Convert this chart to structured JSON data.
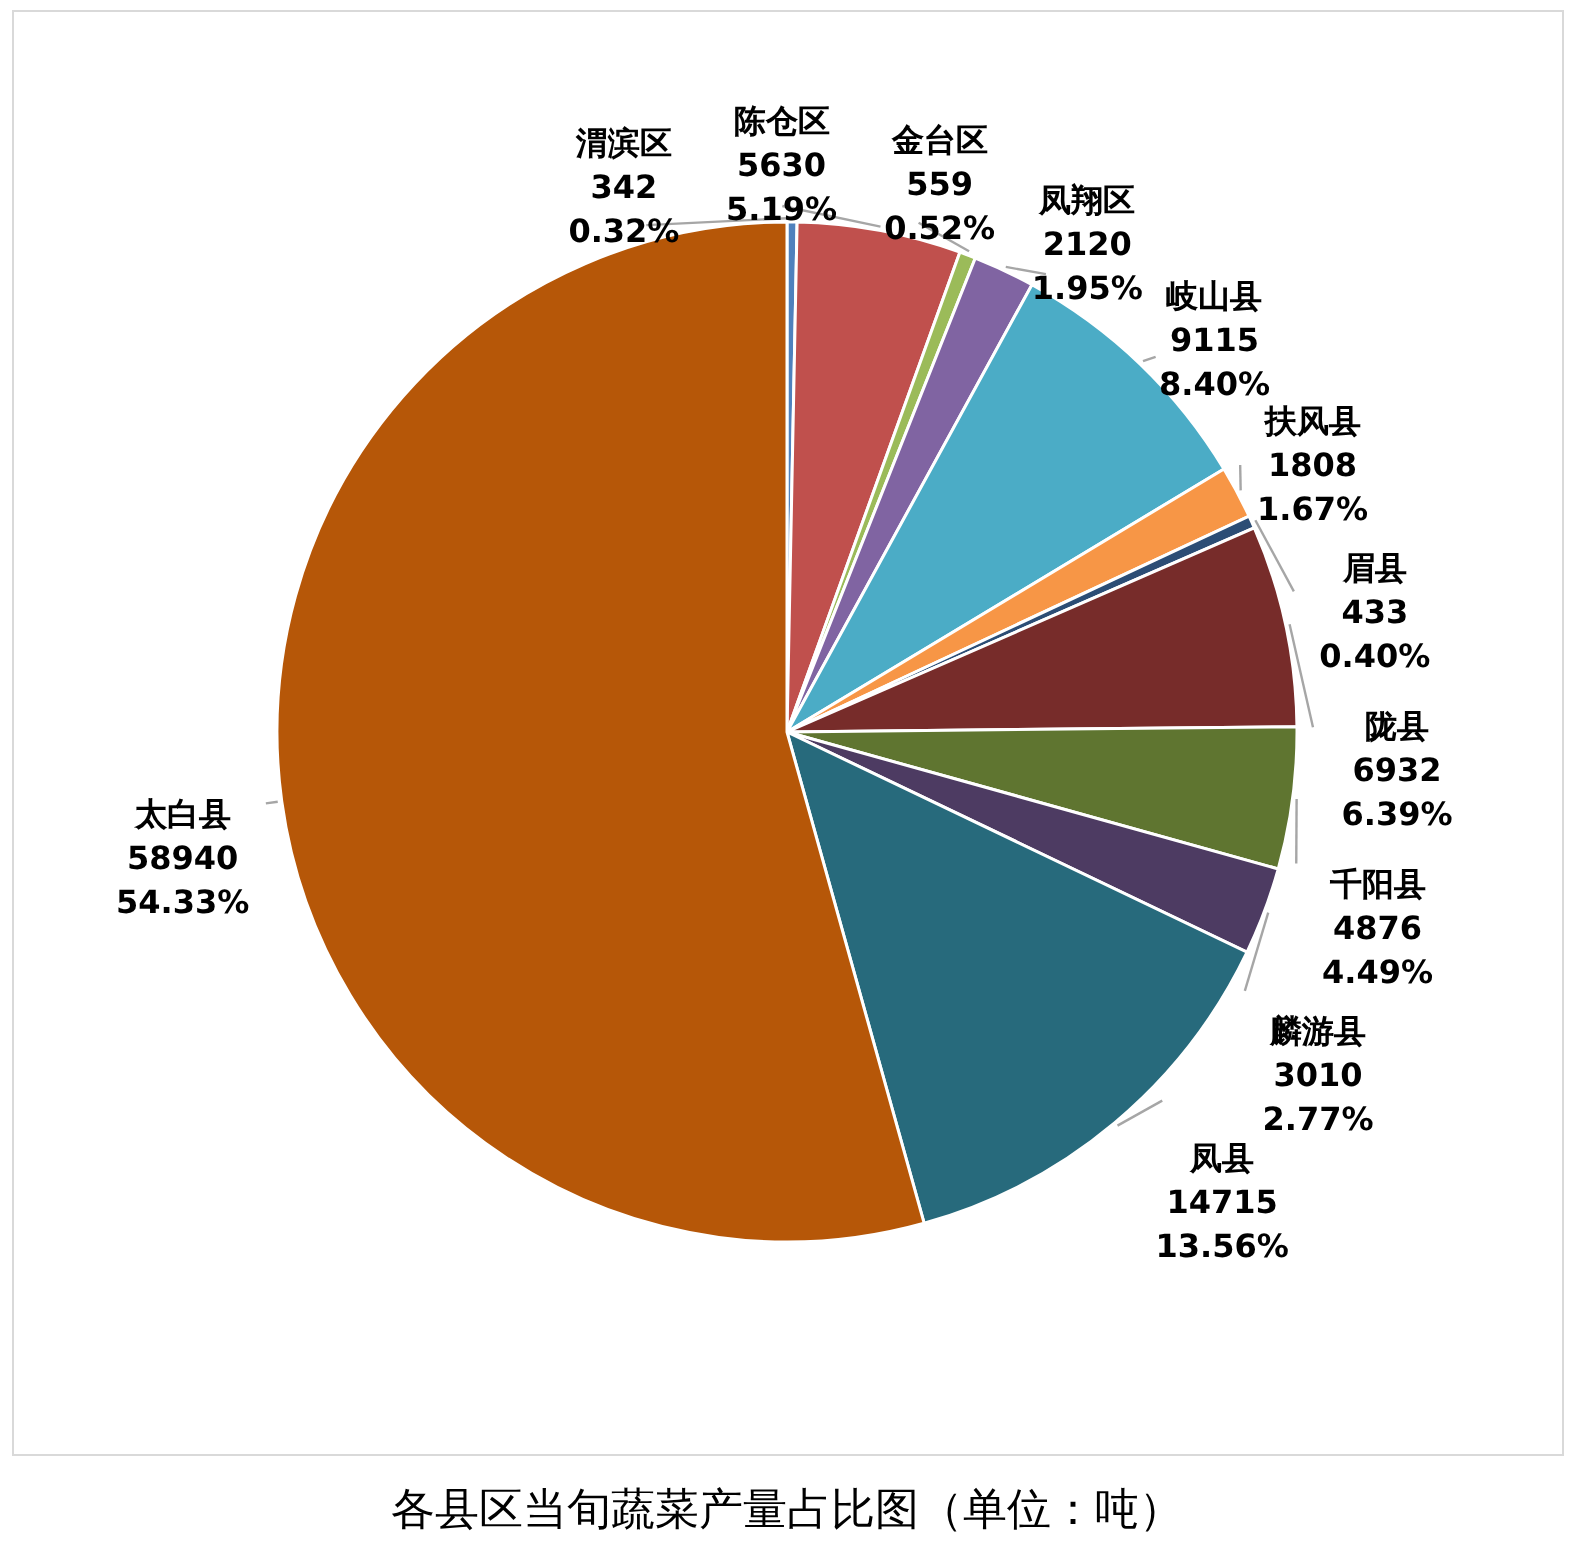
{
  "chart_data": {
    "type": "pie",
    "title": "各县区当旬蔬菜产量占比图（单位：吨）",
    "categories": [
      "渭滨区",
      "陈仓区",
      "金台区",
      "凤翔区",
      "岐山县",
      "扶风县",
      "眉县",
      "陇县",
      "千阳县",
      "麟游县",
      "凤县",
      "太白县"
    ],
    "values": [
      342,
      5630,
      559,
      2120,
      9115,
      1808,
      433,
      6932,
      4876,
      3010,
      14715,
      58940
    ],
    "value_labels": [
      "342\n0.32%",
      "5630\n5.19%",
      "559\n0.52%",
      "2120\n1.95%",
      "9115\n8.40%",
      "1808\n1.67%",
      "433\n0.40%",
      "6932\n6.39%",
      "4876\n4.49%",
      "3010\n2.77%",
      "14715\n13.56%",
      "58940\n54.33%"
    ],
    "colors": [
      "#4f81bd",
      "#c0504d",
      "#9bbb59",
      "#8064a2",
      "#4bacc6",
      "#f79646",
      "#2c4d75",
      "#772c2a",
      "#5f7530",
      "#4d3b62",
      "#276a7c",
      "#b65708"
    ]
  }
}
